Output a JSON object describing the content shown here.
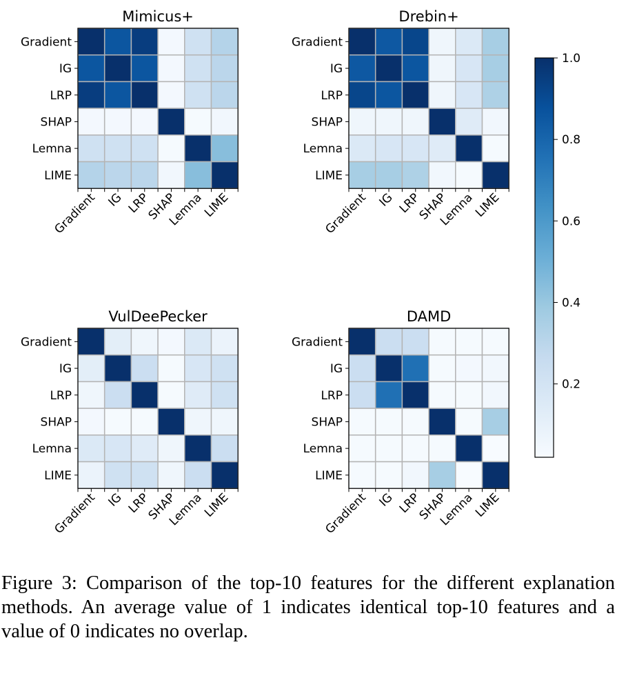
{
  "chart_data": [
    {
      "type": "heatmap",
      "title": "Mimicus+",
      "x_categories": [
        "Gradient",
        "IG",
        "LRP",
        "SHAP",
        "Lemna",
        "LIME"
      ],
      "y_categories": [
        "Gradient",
        "IG",
        "LRP",
        "SHAP",
        "Lemna",
        "LIME"
      ],
      "values": [
        [
          1.0,
          0.86,
          0.95,
          0.04,
          0.22,
          0.32
        ],
        [
          0.86,
          1.0,
          0.86,
          0.04,
          0.22,
          0.3
        ],
        [
          0.95,
          0.86,
          1.0,
          0.04,
          0.22,
          0.3
        ],
        [
          0.04,
          0.04,
          0.04,
          1.0,
          0.03,
          0.05
        ],
        [
          0.22,
          0.22,
          0.22,
          0.03,
          1.0,
          0.44
        ],
        [
          0.32,
          0.3,
          0.3,
          0.05,
          0.44,
          1.0
        ]
      ]
    },
    {
      "type": "heatmap",
      "title": "Drebin+",
      "x_categories": [
        "Gradient",
        "IG",
        "LRP",
        "SHAP",
        "Lemna",
        "LIME"
      ],
      "y_categories": [
        "Gradient",
        "IG",
        "LRP",
        "SHAP",
        "Lemna",
        "LIME"
      ],
      "values": [
        [
          1.0,
          0.85,
          0.92,
          0.06,
          0.16,
          0.36
        ],
        [
          0.85,
          1.0,
          0.86,
          0.06,
          0.18,
          0.36
        ],
        [
          0.92,
          0.86,
          1.0,
          0.06,
          0.18,
          0.34
        ],
        [
          0.06,
          0.06,
          0.06,
          1.0,
          0.14,
          0.05
        ],
        [
          0.16,
          0.18,
          0.18,
          0.14,
          1.0,
          0.03
        ],
        [
          0.36,
          0.36,
          0.34,
          0.05,
          0.03,
          1.0
        ]
      ]
    },
    {
      "type": "heatmap",
      "title": "VulDeePecker",
      "x_categories": [
        "Gradient",
        "IG",
        "LRP",
        "SHAP",
        "Lemna",
        "LIME"
      ],
      "y_categories": [
        "Gradient",
        "IG",
        "LRP",
        "SHAP",
        "Lemna",
        "LIME"
      ],
      "values": [
        [
          1.0,
          0.12,
          0.06,
          0.04,
          0.16,
          0.08
        ],
        [
          0.12,
          1.0,
          0.24,
          0.03,
          0.18,
          0.22
        ],
        [
          0.06,
          0.24,
          1.0,
          0.03,
          0.14,
          0.22
        ],
        [
          0.04,
          0.03,
          0.03,
          1.0,
          0.06,
          0.06
        ],
        [
          0.16,
          0.18,
          0.14,
          0.06,
          1.0,
          0.24
        ],
        [
          0.08,
          0.22,
          0.22,
          0.06,
          0.24,
          1.0
        ]
      ]
    },
    {
      "type": "heatmap",
      "title": "DAMD",
      "x_categories": [
        "Gradient",
        "IG",
        "LRP",
        "SHAP",
        "Lemna",
        "LIME"
      ],
      "y_categories": [
        "Gradient",
        "IG",
        "LRP",
        "SHAP",
        "Lemna",
        "LIME"
      ],
      "values": [
        [
          1.0,
          0.24,
          0.24,
          0.03,
          0.03,
          0.03
        ],
        [
          0.24,
          1.0,
          0.76,
          0.03,
          0.04,
          0.05
        ],
        [
          0.24,
          0.76,
          1.0,
          0.03,
          0.03,
          0.05
        ],
        [
          0.03,
          0.03,
          0.03,
          1.0,
          0.03,
          0.36
        ],
        [
          0.03,
          0.03,
          0.03,
          0.03,
          1.0,
          0.02
        ],
        [
          0.03,
          0.03,
          0.05,
          0.36,
          0.02,
          1.0
        ]
      ]
    }
  ],
  "colorbar": {
    "colormap": "Blues",
    "range": [
      0.02,
      1.0
    ],
    "ticks": [
      0.2,
      0.4,
      0.6,
      0.8,
      1.0
    ],
    "tick_labels": [
      "0.2",
      "0.4",
      "0.6",
      "0.8",
      "1.0"
    ]
  },
  "colors": {
    "grid_line": "#b4b4b4",
    "blues": [
      "#f7fbff",
      "#deebf7",
      "#c6dbef",
      "#9ecae1",
      "#6baed6",
      "#4292c6",
      "#2171b5",
      "#08519c",
      "#08306b"
    ]
  },
  "caption": "Figure 3: Comparison of the top-10 features for the different explanation methods. An average value of 1 indicates identical top-10 features and a value of 0 indicates no overlap."
}
